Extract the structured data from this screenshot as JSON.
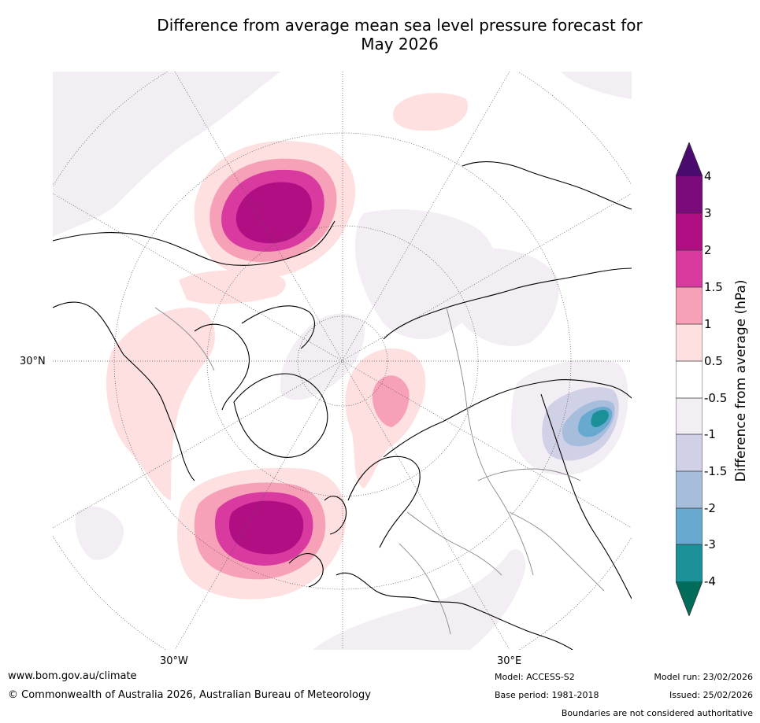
{
  "title": {
    "line1": "Difference from average mean sea level pressure forecast for",
    "line2": "May 2026"
  },
  "map": {
    "projection": "north-polar-stereographic",
    "lat_label_30n": "30°N",
    "lon_label_30w": "30°W",
    "lon_label_30e": "30°E"
  },
  "colorbar": {
    "label": "Difference from average (hPa)",
    "ticks": [
      "4",
      "3",
      "2",
      "1.5",
      "1",
      "0.5",
      "-0.5",
      "-1",
      "-1.5",
      "-2",
      "-3",
      "-4"
    ],
    "colors": {
      "above_4": "#4b0a6e",
      "3_to_4": "#7b0b7a",
      "2_to_3": "#b00e83",
      "1_5_to_2": "#d93aa0",
      "1_to_1_5": "#f7a1b8",
      "0_5_to_1": "#fde0df",
      "neutral": "#ffffff",
      "m1_to_m0_5": "#f3edf4",
      "m1_5_to_m1": "#d0d1e6",
      "m2_to_m1_5": "#a6bddb",
      "m3_to_m2": "#67a9cf",
      "m4_to_m3": "#1c9099",
      "below_m4": "#016c59"
    }
  },
  "footer": {
    "website": "www.bom.gov.au/climate",
    "copyright": "© Commonwealth of Australia 2026, Australian Bureau of Meteorology",
    "model": "Model: ACCESS-S2",
    "base_period": "Base period: 1981-2018",
    "model_run": "Model run: 23/02/2026",
    "issued": "Issued: 25/02/2026",
    "disclaimer": "Boundaries are not considered authoritative"
  }
}
